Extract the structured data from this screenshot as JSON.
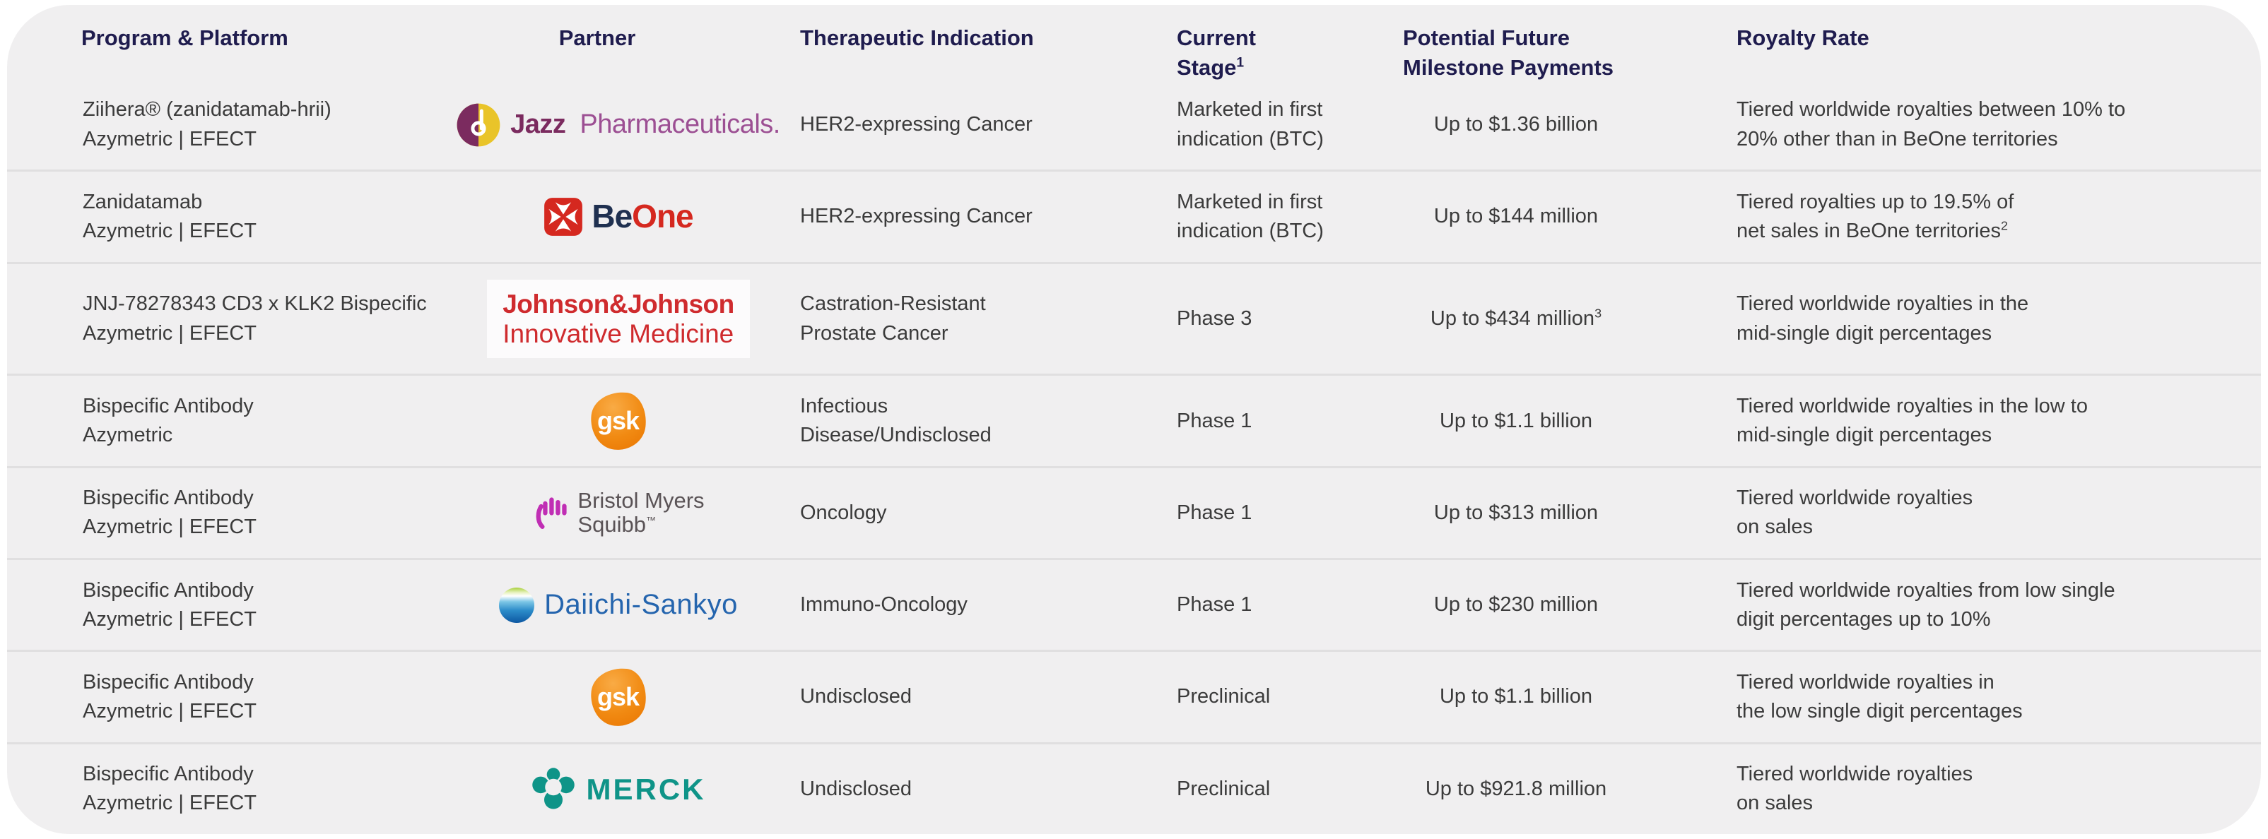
{
  "colors": {
    "header_text": "#1f1c4e",
    "body_text": "#3b3b3b",
    "card_bg": "#f0eff0",
    "separator": "#e0dfe0",
    "jazz_purple": "#7b2b5f",
    "jazz_gold": "#e9c429",
    "jazz_light_purple": "#9c4f93",
    "beone_red": "#d5281f",
    "beone_navy": "#1f3050",
    "jnj_red": "#cf2b2e",
    "gsk_orange": "#f18a12",
    "bms_magenta": "#c02eb4",
    "bms_gray": "#5a5356",
    "daiichi_blue": "#2565ae",
    "merck_teal": "#0f9488"
  },
  "headers": {
    "program": "Program & Platform",
    "partner": "Partner",
    "indication": "Therapeutic Indication",
    "stage_line1": "Current",
    "stage_line2": "Stage",
    "stage_sup": "1",
    "milestone_line1": "Potential Future",
    "milestone_line2": "Milestone Payments",
    "royalty": "Royalty Rate"
  },
  "logos": {
    "jazz": {
      "text_bold": "Jazz",
      "text_rest": "Pharmaceuticals."
    },
    "beone": {
      "text_navy": "Be",
      "text_red": "One"
    },
    "jnj": {
      "line1": "Johnson&Johnson",
      "line2": "Innovative Medicine"
    },
    "gsk": {
      "text": "gsk"
    },
    "bms": {
      "line1": "Bristol Myers",
      "line2": "Squibb",
      "tm": "™"
    },
    "daiichi": {
      "text": "Daiichi-Sankyo"
    },
    "merck": {
      "text": "MERCK"
    }
  },
  "rows": [
    {
      "program": [
        "Ziihera® (zanidatamab-hrii)",
        "Azymetric | EFECT"
      ],
      "partner": "jazz",
      "partner_name": "Jazz Pharmaceuticals",
      "indication": [
        "HER2-expressing Cancer"
      ],
      "stage": [
        "Marketed in first",
        "indication (BTC)"
      ],
      "milestone": "Up to $1.36 billion",
      "milestone_sup": "",
      "royalty": [
        "Tiered worldwide royalties between 10% to",
        "20%  other than in BeOne territories"
      ],
      "royalty_sup": ""
    },
    {
      "program": [
        "Zanidatamab",
        "Azymetric | EFECT"
      ],
      "partner": "beone",
      "partner_name": "BeOne",
      "indication": [
        "HER2-expressing Cancer"
      ],
      "stage": [
        "Marketed in first",
        "indication (BTC)"
      ],
      "milestone": "Up to $144 million",
      "milestone_sup": "",
      "royalty": [
        "Tiered royalties up to 19.5% of",
        "net sales in BeOne territories"
      ],
      "royalty_sup": "2"
    },
    {
      "program": [
        "JNJ-78278343 CD3 x KLK2 Bispecific",
        "Azymetric | EFECT"
      ],
      "partner": "jnj",
      "partner_name": "Johnson & Johnson Innovative Medicine",
      "indication": [
        "Castration-Resistant",
        "Prostate Cancer"
      ],
      "stage": [
        "Phase 3"
      ],
      "milestone": "Up to $434 million",
      "milestone_sup": "3",
      "royalty": [
        "Tiered worldwide royalties in the",
        "mid-single digit percentages"
      ],
      "royalty_sup": ""
    },
    {
      "program": [
        "Bispecific Antibody",
        "Azymetric"
      ],
      "partner": "gsk",
      "partner_name": "GSK",
      "indication": [
        "Infectious",
        "Disease/Undisclosed"
      ],
      "stage": [
        "Phase 1"
      ],
      "milestone": "Up to $1.1 billion",
      "milestone_sup": "",
      "royalty": [
        "Tiered worldwide  royalties in the low to",
        "mid-single digit percentages"
      ],
      "royalty_sup": ""
    },
    {
      "program": [
        "Bispecific Antibody",
        "Azymetric | EFECT"
      ],
      "partner": "bms",
      "partner_name": "Bristol Myers Squibb",
      "indication": [
        "Oncology"
      ],
      "stage": [
        "Phase 1"
      ],
      "milestone": "Up to $313 million",
      "milestone_sup": "",
      "royalty": [
        "Tiered worldwide royalties",
        "on sales"
      ],
      "royalty_sup": ""
    },
    {
      "program": [
        "Bispecific Antibody",
        "Azymetric | EFECT"
      ],
      "partner": "daiichi",
      "partner_name": "Daiichi-Sankyo",
      "indication": [
        "Immuno-Oncology"
      ],
      "stage": [
        "Phase 1"
      ],
      "milestone": "Up to $230 million",
      "milestone_sup": "",
      "royalty": [
        "Tiered worldwide royalties from low single",
        "digit percentages up to 10%"
      ],
      "royalty_sup": ""
    },
    {
      "program": [
        "Bispecific Antibody",
        "Azymetric | EFECT"
      ],
      "partner": "gsk",
      "partner_name": "GSK",
      "indication": [
        "Undisclosed"
      ],
      "stage": [
        "Preclinical"
      ],
      "milestone": "Up to $1.1 billion",
      "milestone_sup": "",
      "royalty": [
        "Tiered worldwide royalties in",
        "the low single digit percentages"
      ],
      "royalty_sup": ""
    },
    {
      "program": [
        "Bispecific Antibody",
        "Azymetric | EFECT"
      ],
      "partner": "merck",
      "partner_name": "Merck",
      "indication": [
        "Undisclosed"
      ],
      "stage": [
        "Preclinical"
      ],
      "milestone": "Up to $921.8 million",
      "milestone_sup": "",
      "royalty": [
        "Tiered worldwide royalties",
        "on sales"
      ],
      "royalty_sup": ""
    }
  ]
}
